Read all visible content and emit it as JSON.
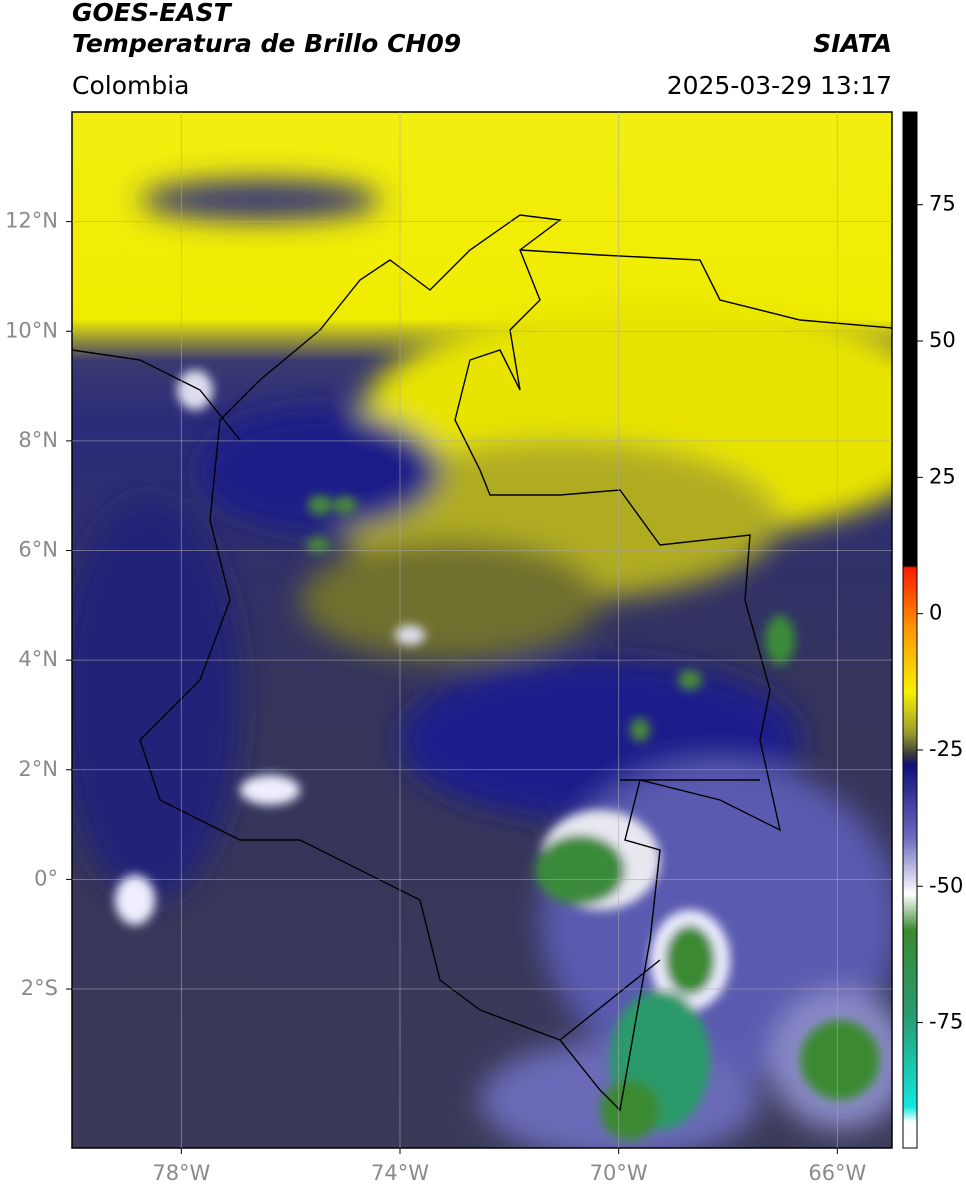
{
  "header": {
    "product": "GOES-EAST",
    "title": "Temperatura de Brillo CH09",
    "source": "SIATA",
    "region": "Colombia",
    "datetime": "2025-03-29 13:17"
  },
  "map": {
    "lat_lim": [
      -4.9,
      14
    ],
    "lon_lim": [
      -80,
      -65
    ],
    "lat_ticks": [
      {
        "value": 12,
        "label": "12°N"
      },
      {
        "value": 10,
        "label": "10°N"
      },
      {
        "value": 8,
        "label": "8°N"
      },
      {
        "value": 6,
        "label": "6°N"
      },
      {
        "value": 4,
        "label": "4°N"
      },
      {
        "value": 2,
        "label": "2°N"
      },
      {
        "value": 0,
        "label": "0°"
      },
      {
        "value": -2,
        "label": "2°S"
      }
    ],
    "lon_ticks": [
      {
        "value": -78,
        "label": "78°W"
      },
      {
        "value": -74,
        "label": "74°W"
      },
      {
        "value": -70,
        "label": "70°W"
      },
      {
        "value": -66,
        "label": "66°W"
      }
    ]
  },
  "colorbar": {
    "lim": [
      -98,
      92
    ],
    "ticks": [
      75,
      50,
      25,
      0,
      -25,
      -50,
      -75
    ]
  }
}
